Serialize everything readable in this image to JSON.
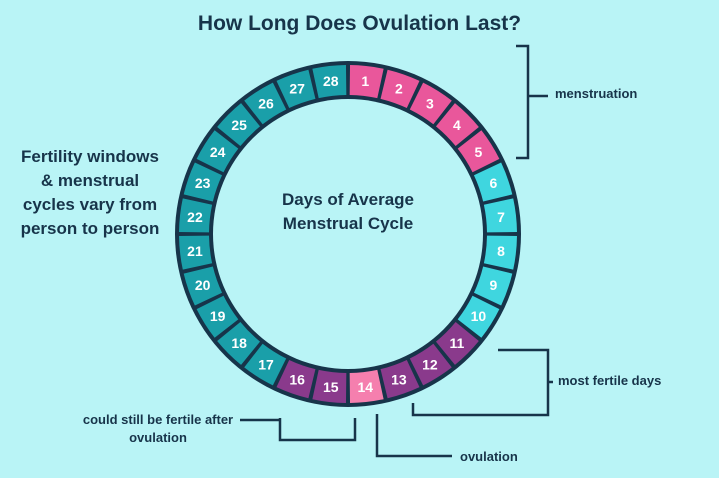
{
  "title": "How Long Does Ovulation Last?",
  "left_text": "Fertility windows & menstrual cycles vary from person to person",
  "center_text": "Days of Average Menstrual Cycle",
  "labels": {
    "menstruation": "menstruation",
    "most_fertile": "most fertile days",
    "ovulation": "ovulation",
    "after_ovulation": "could still be fertile after ovulation"
  },
  "colors": {
    "background": "#b9f4f6",
    "outline": "#17344a",
    "menstruation": "#e9579b",
    "follicular": "#3fd6df",
    "fertile": "#8a3a8c",
    "ovulation": "#f57fae",
    "luteal": "#1a9fa9"
  },
  "days": [
    {
      "day": "1",
      "phase": "menstruation"
    },
    {
      "day": "2",
      "phase": "menstruation"
    },
    {
      "day": "3",
      "phase": "menstruation"
    },
    {
      "day": "4",
      "phase": "menstruation"
    },
    {
      "day": "5",
      "phase": "menstruation"
    },
    {
      "day": "6",
      "phase": "follicular"
    },
    {
      "day": "7",
      "phase": "follicular"
    },
    {
      "day": "8",
      "phase": "follicular"
    },
    {
      "day": "9",
      "phase": "follicular"
    },
    {
      "day": "10",
      "phase": "follicular"
    },
    {
      "day": "11",
      "phase": "fertile"
    },
    {
      "day": "12",
      "phase": "fertile"
    },
    {
      "day": "13",
      "phase": "fertile"
    },
    {
      "day": "14",
      "phase": "ovulation"
    },
    {
      "day": "15",
      "phase": "fertile"
    },
    {
      "day": "16",
      "phase": "fertile"
    },
    {
      "day": "17",
      "phase": "luteal"
    },
    {
      "day": "18",
      "phase": "luteal"
    },
    {
      "day": "19",
      "phase": "luteal"
    },
    {
      "day": "20",
      "phase": "luteal"
    },
    {
      "day": "21",
      "phase": "luteal"
    },
    {
      "day": "22",
      "phase": "luteal"
    },
    {
      "day": "23",
      "phase": "luteal"
    },
    {
      "day": "24",
      "phase": "luteal"
    },
    {
      "day": "25",
      "phase": "luteal"
    },
    {
      "day": "26",
      "phase": "luteal"
    },
    {
      "day": "27",
      "phase": "luteal"
    },
    {
      "day": "28",
      "phase": "luteal"
    }
  ]
}
